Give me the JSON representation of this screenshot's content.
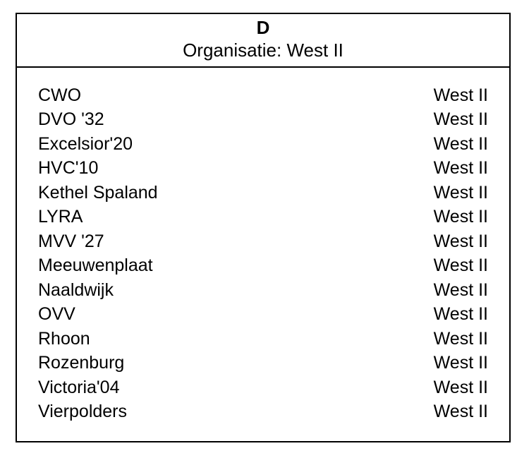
{
  "colors": {
    "border": "#000000",
    "background": "#ffffff",
    "text": "#000000"
  },
  "typography": {
    "font_family": "Arial, Helvetica, sans-serif",
    "title_fontsize_pt": 20,
    "body_fontsize_pt": 19,
    "title_weight": 700,
    "body_weight": 400
  },
  "header": {
    "group_title": "D",
    "org_label": "Organisatie:",
    "org_value": "West II"
  },
  "rows": [
    {
      "name": "CWO",
      "region": "West II"
    },
    {
      "name": "DVO '32",
      "region": "West II"
    },
    {
      "name": "Excelsior'20",
      "region": "West II"
    },
    {
      "name": "HVC'10",
      "region": "West II"
    },
    {
      "name": "Kethel Spaland",
      "region": "West II"
    },
    {
      "name": "LYRA",
      "region": "West II"
    },
    {
      "name": "MVV '27",
      "region": "West II"
    },
    {
      "name": "Meeuwenplaat",
      "region": "West II"
    },
    {
      "name": "Naaldwijk",
      "region": "West II"
    },
    {
      "name": "OVV",
      "region": "West II"
    },
    {
      "name": "Rhoon",
      "region": "West II"
    },
    {
      "name": "Rozenburg",
      "region": "West II"
    },
    {
      "name": "Victoria'04",
      "region": "West II"
    },
    {
      "name": "Vierpolders",
      "region": "West II"
    }
  ]
}
